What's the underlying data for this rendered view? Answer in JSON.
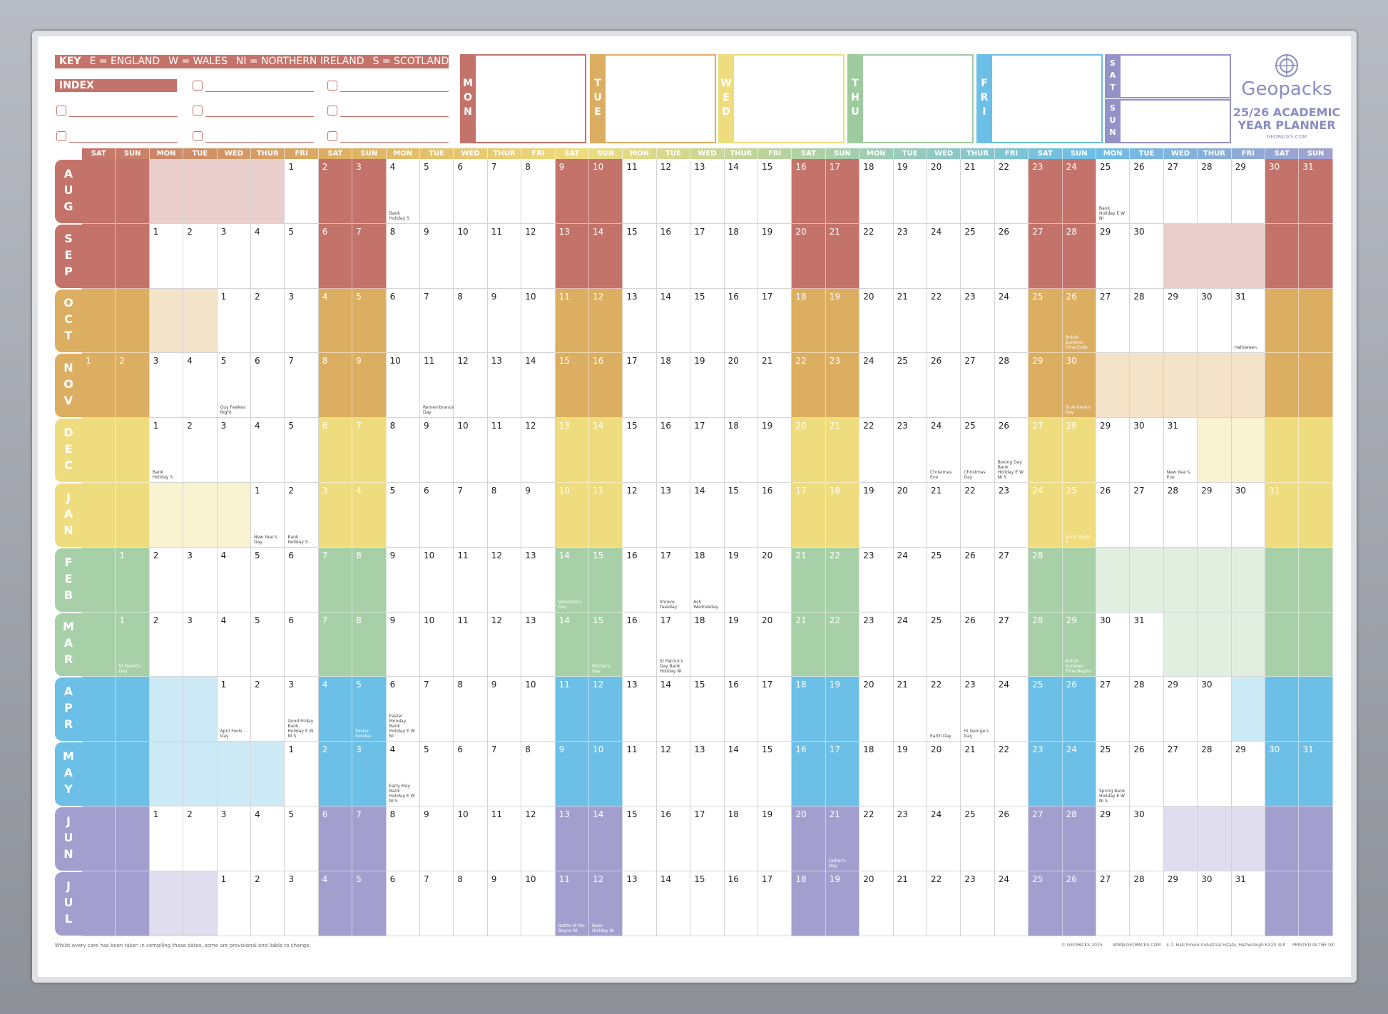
{
  "key": {
    "label": "KEY",
    "items": [
      "E = ENGLAND",
      "W = WALES",
      "NI = NORTHERN IRELAND",
      "S = SCOTLAND"
    ]
  },
  "index": {
    "label": "INDEX"
  },
  "week_boxes": [
    {
      "label": "MON",
      "color": "#c4736a"
    },
    {
      "label": "TUE",
      "color": "#dcae62"
    },
    {
      "label": "WED",
      "color": "#efdc7e"
    },
    {
      "label": "THU",
      "color": "#9ecb9e"
    },
    {
      "label": "FRI",
      "color": "#6cbfe6"
    },
    {
      "label": "SAT",
      "color": "#9592c8"
    },
    {
      "label": "SUN",
      "color": "#9592c8"
    }
  ],
  "brand": {
    "name": "Geopacks",
    "title_1": "25/26 ACADEMIC",
    "title_2": "YEAR PLANNER",
    "url": "GEOPACKS.COM"
  },
  "weekday_headers": [
    "SAT",
    "SUN",
    "MON",
    "TUE",
    "WED",
    "THUR",
    "FRI",
    "SAT",
    "SUN",
    "MON",
    "TUE",
    "WED",
    "THUR",
    "FRI",
    "SAT",
    "SUN",
    "MON",
    "TUE",
    "WED",
    "THUR",
    "FRI",
    "SAT",
    "SUN",
    "MON",
    "TUE",
    "WED",
    "THUR",
    "FRI",
    "SAT",
    "SUN",
    "MON",
    "TUE",
    "WED",
    "THUR",
    "FRI",
    "SAT",
    "SUN"
  ],
  "months": [
    {
      "name": "AUG",
      "color": "#c4736a",
      "cells": [
        null,
        null,
        null,
        null,
        null,
        null,
        1,
        2,
        3,
        4,
        5,
        6,
        7,
        8,
        9,
        10,
        11,
        12,
        13,
        14,
        15,
        16,
        17,
        18,
        19,
        20,
        21,
        22,
        23,
        24,
        25,
        26,
        27,
        28,
        29,
        30,
        31
      ],
      "notes": [
        {
          "day": 4,
          "text": "Bank Holiday S"
        },
        {
          "day": 25,
          "text": "Bank Holiday E W NI"
        }
      ]
    },
    {
      "name": "SEP",
      "color": "#c4736a",
      "cells": [
        null,
        null,
        1,
        2,
        3,
        4,
        5,
        6,
        7,
        8,
        9,
        10,
        11,
        12,
        13,
        14,
        15,
        16,
        17,
        18,
        19,
        20,
        21,
        22,
        23,
        24,
        25,
        26,
        27,
        28,
        29,
        30,
        null,
        null,
        null,
        null,
        null
      ],
      "notes": []
    },
    {
      "name": "OCT",
      "color": "#dcae62",
      "cells": [
        null,
        null,
        null,
        null,
        1,
        2,
        3,
        4,
        5,
        6,
        7,
        8,
        9,
        10,
        11,
        12,
        13,
        14,
        15,
        16,
        17,
        18,
        19,
        20,
        21,
        22,
        23,
        24,
        25,
        26,
        27,
        28,
        29,
        30,
        31,
        null,
        null
      ],
      "notes": [
        {
          "day": 26,
          "text": "British Summer Time Ends"
        },
        {
          "day": 31,
          "text": "Halloween"
        }
      ]
    },
    {
      "name": "NOV",
      "color": "#dcae62",
      "cells": [
        1,
        2,
        3,
        4,
        5,
        6,
        7,
        8,
        9,
        10,
        11,
        12,
        13,
        14,
        15,
        16,
        17,
        18,
        19,
        20,
        21,
        22,
        23,
        24,
        25,
        26,
        27,
        28,
        29,
        30,
        null,
        null,
        null,
        null,
        null,
        null,
        null
      ],
      "notes": [
        {
          "day": 5,
          "text": "Guy Fawkes Night"
        },
        {
          "day": 11,
          "text": "Remembrance Day"
        },
        {
          "day": 30,
          "text": "St Andrew's Day"
        }
      ]
    },
    {
      "name": "DEC",
      "color": "#efdc7e",
      "cells": [
        null,
        null,
        1,
        2,
        3,
        4,
        5,
        6,
        7,
        8,
        9,
        10,
        11,
        12,
        13,
        14,
        15,
        16,
        17,
        18,
        19,
        20,
        21,
        22,
        23,
        24,
        25,
        26,
        27,
        28,
        29,
        30,
        31,
        null,
        null,
        null,
        null
      ],
      "notes": [
        {
          "day": 1,
          "text": "Bank Holiday S"
        },
        {
          "day": 24,
          "text": "Christmas Eve"
        },
        {
          "day": 25,
          "text": "Christmas Day"
        },
        {
          "day": 26,
          "text": "Boxing Day Bank Holiday E W NI S"
        },
        {
          "day": 31,
          "text": "New Year's Eve"
        }
      ]
    },
    {
      "name": "JAN",
      "color": "#efdc7e",
      "cells": [
        null,
        null,
        null,
        null,
        null,
        1,
        2,
        3,
        4,
        5,
        6,
        7,
        8,
        9,
        10,
        11,
        12,
        13,
        14,
        15,
        16,
        17,
        18,
        19,
        20,
        21,
        22,
        23,
        24,
        25,
        26,
        27,
        28,
        29,
        30,
        31,
        null
      ],
      "notes": [
        {
          "day": 1,
          "text": "New Year's Day"
        },
        {
          "day": 2,
          "text": "Bank Holiday S"
        },
        {
          "day": 25,
          "text": "Burns Night S"
        }
      ]
    },
    {
      "name": "FEB",
      "color": "#a8d0a8",
      "cells": [
        null,
        1,
        2,
        3,
        4,
        5,
        6,
        7,
        8,
        9,
        10,
        11,
        12,
        13,
        14,
        15,
        16,
        17,
        18,
        19,
        20,
        21,
        22,
        23,
        24,
        25,
        26,
        27,
        28,
        null,
        null,
        null,
        null,
        null,
        null,
        null,
        null
      ],
      "notes": [
        {
          "day": 14,
          "text": "Valentine's Day"
        },
        {
          "day": 17,
          "text": "Shrove Tuesday"
        },
        {
          "day": 18,
          "text": "Ash Wednesday"
        }
      ]
    },
    {
      "name": "MAR",
      "color": "#a8d0a8",
      "cells": [
        null,
        1,
        2,
        3,
        4,
        5,
        6,
        7,
        8,
        9,
        10,
        11,
        12,
        13,
        14,
        15,
        16,
        17,
        18,
        19,
        20,
        21,
        22,
        23,
        24,
        25,
        26,
        27,
        28,
        29,
        30,
        31,
        null,
        null,
        null,
        null,
        null
      ],
      "notes": [
        {
          "day": 1,
          "text": "St David's Day"
        },
        {
          "day": 15,
          "text": "Mother's Day"
        },
        {
          "day": 17,
          "text": "St Patrick's Day Bank Holiday NI"
        },
        {
          "day": 29,
          "text": "British Summer Time Begins"
        }
      ]
    },
    {
      "name": "APR",
      "color": "#6cbfe6",
      "cells": [
        null,
        null,
        null,
        null,
        1,
        2,
        3,
        4,
        5,
        6,
        7,
        8,
        9,
        10,
        11,
        12,
        13,
        14,
        15,
        16,
        17,
        18,
        19,
        20,
        21,
        22,
        23,
        24,
        25,
        26,
        27,
        28,
        29,
        30,
        null,
        null,
        null
      ],
      "notes": [
        {
          "day": 1,
          "text": "April Fools Day"
        },
        {
          "day": 3,
          "text": "Good Friday Bank Holiday E W NI S"
        },
        {
          "day": 5,
          "text": "Easter Sunday"
        },
        {
          "day": 6,
          "text": "Easter Monday Bank Holiday E W NI"
        },
        {
          "day": 22,
          "text": "Earth Day"
        },
        {
          "day": 23,
          "text": "St George's Day"
        }
      ]
    },
    {
      "name": "MAY",
      "color": "#6cbfe6",
      "cells": [
        null,
        null,
        null,
        null,
        null,
        null,
        1,
        2,
        3,
        4,
        5,
        6,
        7,
        8,
        9,
        10,
        11,
        12,
        13,
        14,
        15,
        16,
        17,
        18,
        19,
        20,
        21,
        22,
        23,
        24,
        25,
        26,
        27,
        28,
        29,
        30,
        31
      ],
      "notes": [
        {
          "day": 4,
          "text": "Early May Bank Holiday E W NI S"
        },
        {
          "day": 25,
          "text": "Spring Bank Holiday E W NI S"
        }
      ]
    },
    {
      "name": "JUN",
      "color": "#a29fcf",
      "cells": [
        null,
        null,
        1,
        2,
        3,
        4,
        5,
        6,
        7,
        8,
        9,
        10,
        11,
        12,
        13,
        14,
        15,
        16,
        17,
        18,
        19,
        20,
        21,
        22,
        23,
        24,
        25,
        26,
        27,
        28,
        29,
        30,
        null,
        null,
        null,
        null,
        null
      ],
      "notes": [
        {
          "day": 21,
          "text": "Father's Day"
        }
      ]
    },
    {
      "name": "JUL",
      "color": "#a29fcf",
      "cells": [
        null,
        null,
        null,
        null,
        1,
        2,
        3,
        4,
        5,
        6,
        7,
        8,
        9,
        10,
        11,
        12,
        13,
        14,
        15,
        16,
        17,
        18,
        19,
        20,
        21,
        22,
        23,
        24,
        25,
        26,
        27,
        28,
        29,
        30,
        31,
        null,
        null
      ],
      "notes": [
        {
          "day": 11,
          "text": "Battle of the Boyne NI"
        },
        {
          "day": 12,
          "text": "Bank Holiday NI"
        }
      ]
    }
  ],
  "footer": {
    "disclaimer": "Whilst every care has been taken in compiling these dates, some are provisional and liable to change.",
    "items": [
      "© GEOPACKS 2025",
      "WWW.GEOPACKS.COM",
      "4-7, Hatchmoor Industrial Estate, Hatherleigh EX20 3LP",
      "PRINTED IN THE UK"
    ]
  }
}
